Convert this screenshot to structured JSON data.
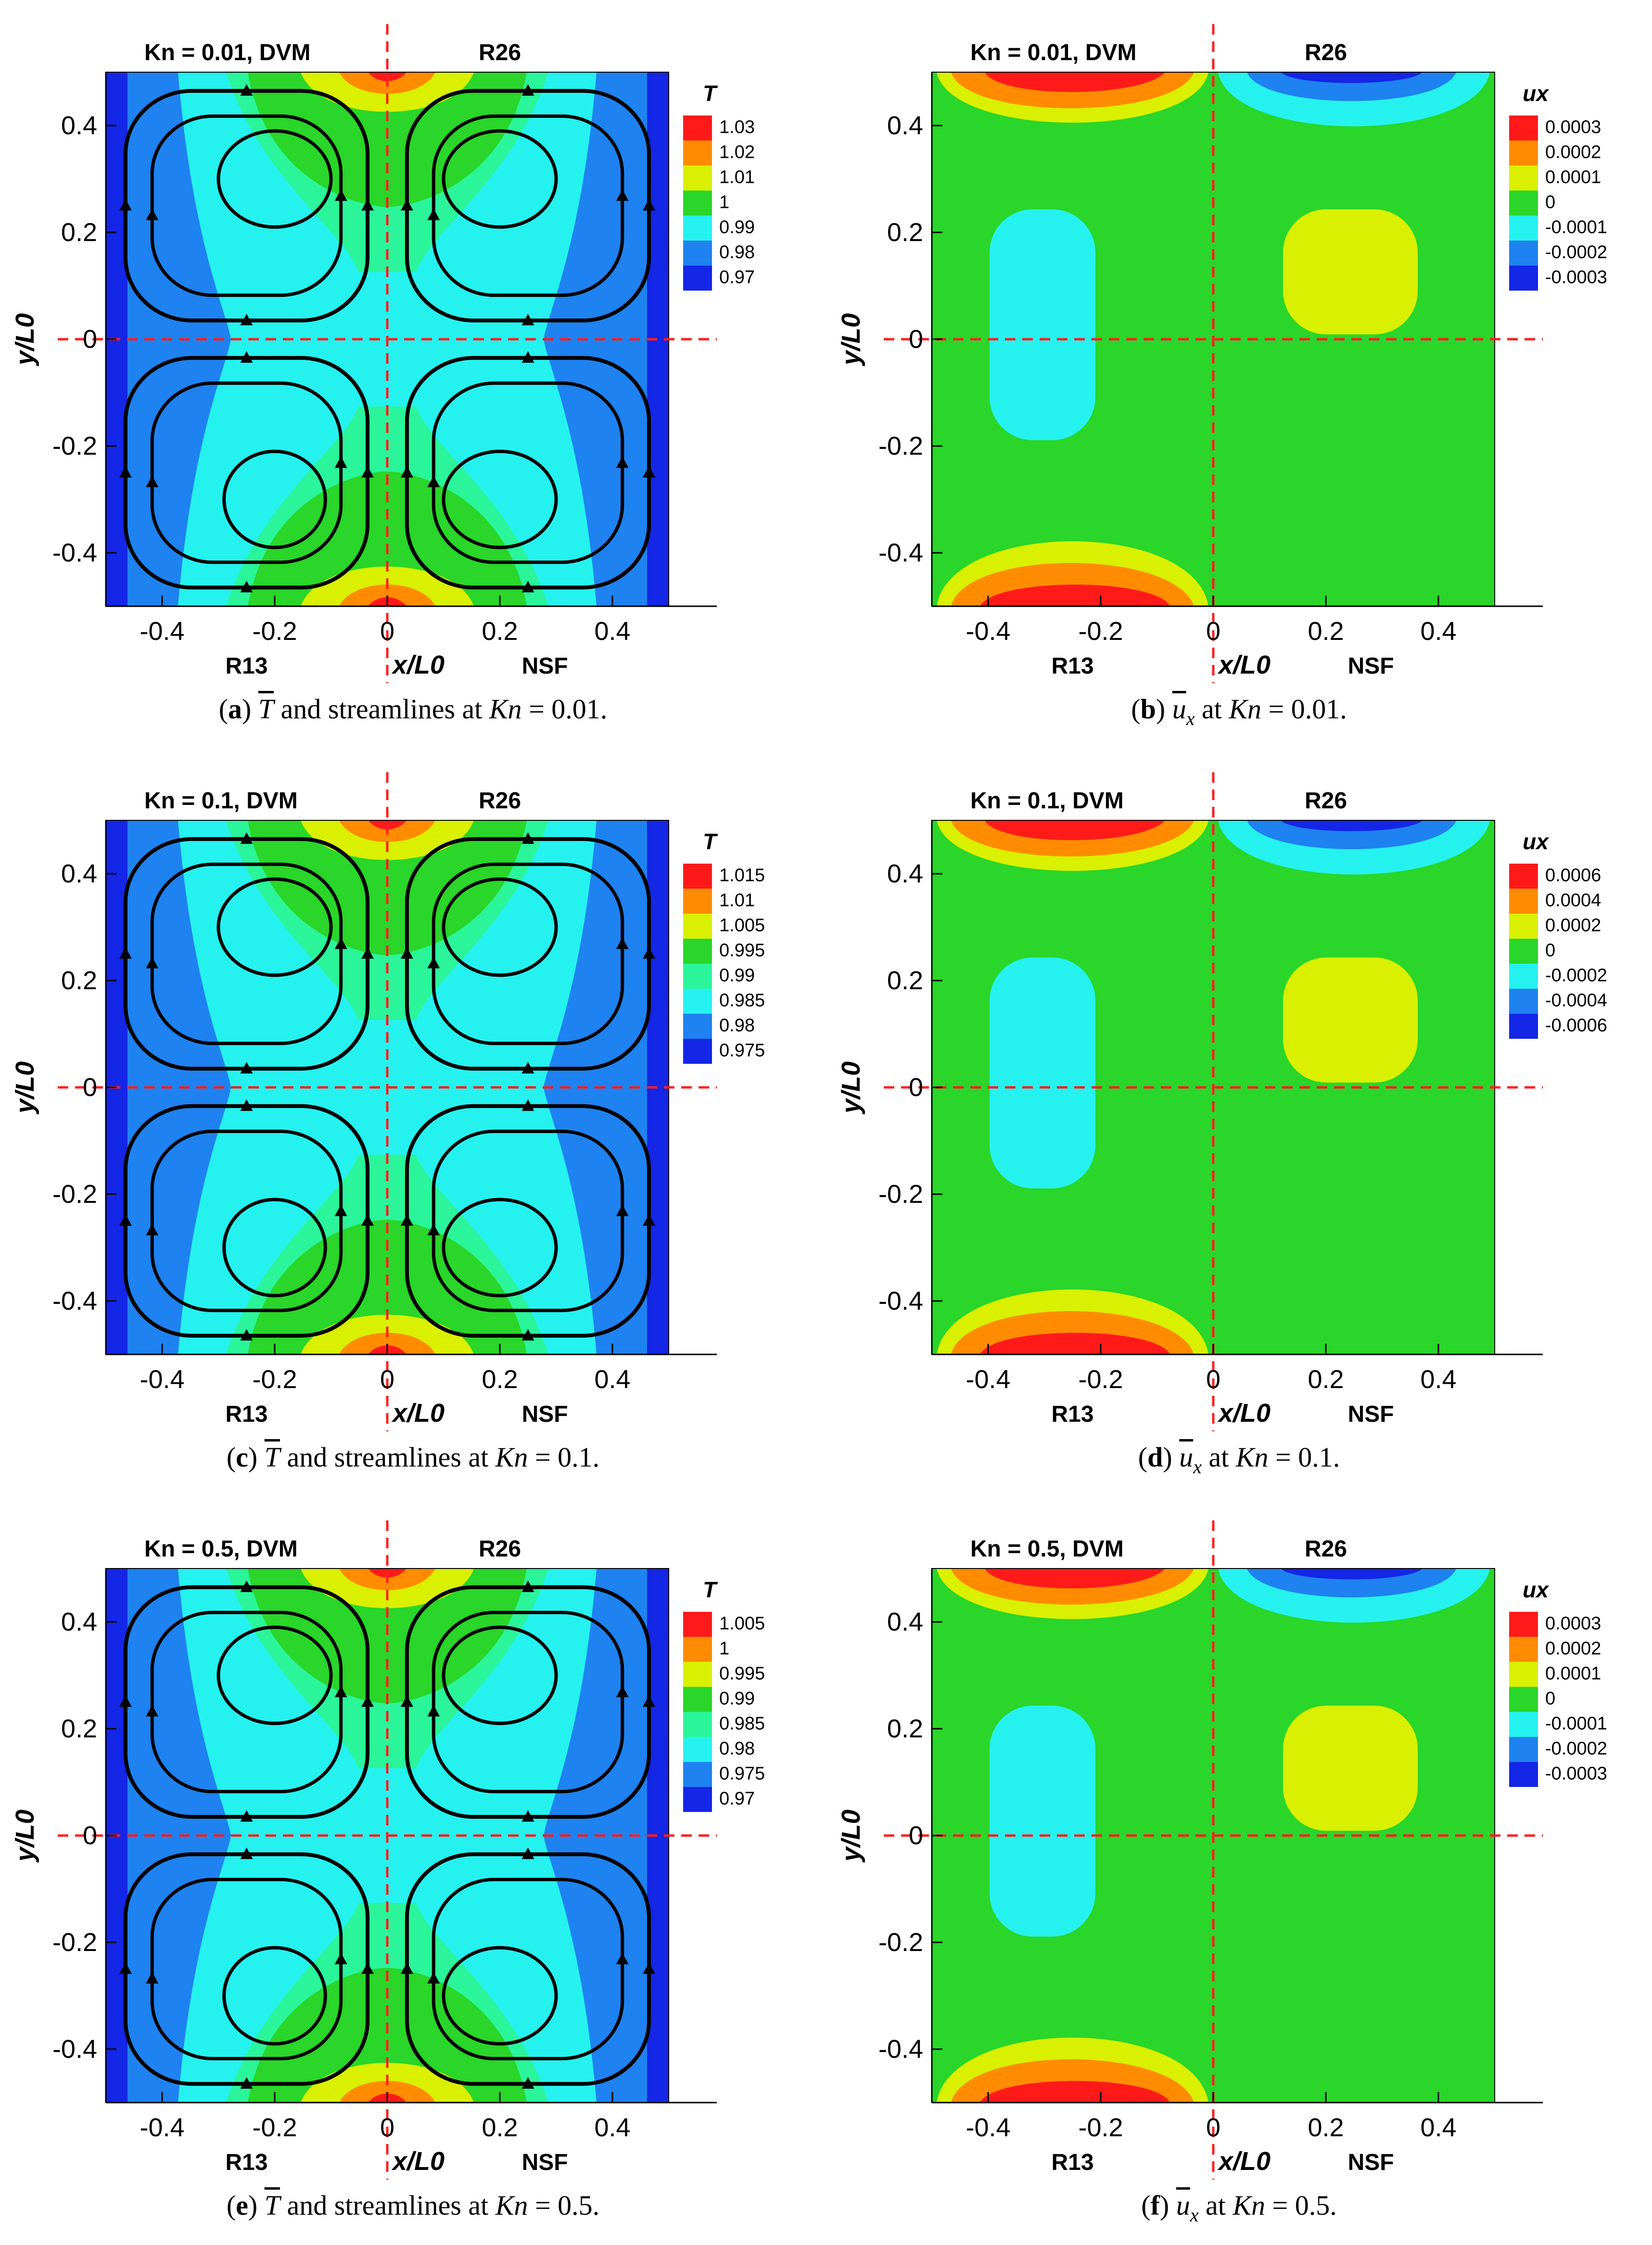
{
  "colors": {
    "red": "#ff1a1a",
    "orange": "#ff8c00",
    "yellow": "#d9f000",
    "green": "#29d629",
    "lightgreen": "#2af59a",
    "cyan": "#25f2ef",
    "midblue": "#1e82f0",
    "deepblue": "#1426e6",
    "divider": "#ff2020",
    "stream": "#000000"
  },
  "panels": [
    {
      "id": "a",
      "type": "temperature",
      "corner_title": "Kn = 0.01, DVM",
      "top_right_label": "R26",
      "bottom_left_label": "R13",
      "bottom_right_label": "NSF",
      "x_axis_title": "x/L0",
      "y_axis_title": "y/L0",
      "x_ticks": [
        "-0.4",
        "-0.2",
        "0",
        "0.2",
        "0.4"
      ],
      "y_ticks": [
        "0.4",
        "0.2",
        "0",
        "-0.2",
        "-0.4"
      ],
      "legend_title": "T",
      "legend_levels": [
        "1.03",
        "1.02",
        "1.01",
        "1",
        "0.99",
        "0.98",
        "0.97"
      ],
      "caption_letter": "a",
      "caption_var": "T",
      "caption_text": "and streamlines at",
      "caption_kn": "Kn",
      "caption_value": "= 0.01."
    },
    {
      "id": "b",
      "type": "velocity",
      "corner_title": "Kn = 0.01, DVM",
      "top_right_label": "R26",
      "bottom_left_label": "R13",
      "bottom_right_label": "NSF",
      "x_axis_title": "x/L0",
      "y_axis_title": "y/L0",
      "x_ticks": [
        "-0.4",
        "-0.2",
        "0",
        "0.2",
        "0.4"
      ],
      "y_ticks": [
        "0.4",
        "0.2",
        "0",
        "-0.2",
        "-0.4"
      ],
      "legend_title": "ux",
      "legend_levels": [
        "0.0003",
        "0.0002",
        "0.0001",
        "0",
        "-0.0001",
        "-0.0002",
        "-0.0003"
      ],
      "caption_letter": "b",
      "caption_var": "u",
      "caption_sub": "x",
      "caption_text": "at",
      "caption_kn": "Kn",
      "caption_value": "= 0.01."
    },
    {
      "id": "c",
      "type": "temperature",
      "corner_title": "Kn = 0.1, DVM",
      "top_right_label": "R26",
      "bottom_left_label": "R13",
      "bottom_right_label": "NSF",
      "x_axis_title": "x/L0",
      "y_axis_title": "y/L0",
      "x_ticks": [
        "-0.4",
        "-0.2",
        "0",
        "0.2",
        "0.4"
      ],
      "y_ticks": [
        "0.4",
        "0.2",
        "0",
        "-0.2",
        "-0.4"
      ],
      "legend_title": "T",
      "legend_levels": [
        "1.015",
        "1.01",
        "1.005",
        "0.995",
        "0.99",
        "0.985",
        "0.98",
        "0.975"
      ],
      "caption_letter": "c",
      "caption_var": "T",
      "caption_text": "and streamlines at",
      "caption_kn": "Kn",
      "caption_value": "= 0.1."
    },
    {
      "id": "d",
      "type": "velocity",
      "corner_title": "Kn = 0.1, DVM",
      "top_right_label": "R26",
      "bottom_left_label": "R13",
      "bottom_right_label": "NSF",
      "x_axis_title": "x/L0",
      "y_axis_title": "y/L0",
      "x_ticks": [
        "-0.4",
        "-0.2",
        "0",
        "0.2",
        "0.4"
      ],
      "y_ticks": [
        "0.4",
        "0.2",
        "0",
        "-0.2",
        "-0.4"
      ],
      "legend_title": "ux",
      "legend_levels": [
        "0.0006",
        "0.0004",
        "0.0002",
        "0",
        "-0.0002",
        "-0.0004",
        "-0.0006"
      ],
      "caption_letter": "d",
      "caption_var": "u",
      "caption_sub": "x",
      "caption_text": "at",
      "caption_kn": "Kn",
      "caption_value": "= 0.1."
    },
    {
      "id": "e",
      "type": "temperature",
      "corner_title": "Kn = 0.5, DVM",
      "top_right_label": "R26",
      "bottom_left_label": "R13",
      "bottom_right_label": "NSF",
      "x_axis_title": "x/L0",
      "y_axis_title": "y/L0",
      "x_ticks": [
        "-0.4",
        "-0.2",
        "0",
        "0.2",
        "0.4"
      ],
      "y_ticks": [
        "0.4",
        "0.2",
        "0",
        "-0.2",
        "-0.4"
      ],
      "legend_title": "T",
      "legend_levels": [
        "1.005",
        "1",
        "0.995",
        "0.99",
        "0.985",
        "0.98",
        "0.975",
        "0.97"
      ],
      "caption_letter": "e",
      "caption_var": "T",
      "caption_text": "and streamlines at",
      "caption_kn": "Kn",
      "caption_value": "= 0.5."
    },
    {
      "id": "f",
      "type": "velocity",
      "corner_title": "Kn = 0.5, DVM",
      "top_right_label": "R26",
      "bottom_left_label": "R13",
      "bottom_right_label": "NSF",
      "x_axis_title": "x/L0",
      "y_axis_title": "y/L0",
      "x_ticks": [
        "-0.4",
        "-0.2",
        "0",
        "0.2",
        "0.4"
      ],
      "y_ticks": [
        "0.4",
        "0.2",
        "0",
        "-0.2",
        "-0.4"
      ],
      "legend_title": "ux",
      "legend_levels": [
        "0.0003",
        "0.0002",
        "0.0001",
        "0",
        "-0.0001",
        "-0.0002",
        "-0.0003"
      ],
      "caption_letter": "f",
      "caption_var": "u",
      "caption_sub": "x",
      "caption_text": "at",
      "caption_kn": "Kn",
      "caption_value": "= 0.5."
    }
  ],
  "chart_data": [
    {
      "type": "heatmap",
      "title": "T and streamlines at Kn = 0.01",
      "xlabel": "x/L0",
      "ylabel": "y/L0",
      "xlim": [
        -0.5,
        0.5
      ],
      "ylim": [
        -0.5,
        0.5
      ],
      "quadrants": [
        "DVM",
        "R26",
        "R13",
        "NSF"
      ],
      "legend_levels": [
        1.03,
        1.02,
        1.01,
        1,
        0.99,
        0.98,
        0.97
      ]
    },
    {
      "type": "heatmap",
      "title": "ux at Kn = 0.01",
      "xlabel": "x/L0",
      "ylabel": "y/L0",
      "xlim": [
        -0.5,
        0.5
      ],
      "ylim": [
        -0.5,
        0.5
      ],
      "quadrants": [
        "DVM",
        "R26",
        "R13",
        "NSF"
      ],
      "legend_levels": [
        0.0003,
        0.0002,
        0.0001,
        0,
        -0.0001,
        -0.0002,
        -0.0003
      ]
    },
    {
      "type": "heatmap",
      "title": "T and streamlines at Kn = 0.1",
      "xlabel": "x/L0",
      "ylabel": "y/L0",
      "xlim": [
        -0.5,
        0.5
      ],
      "ylim": [
        -0.5,
        0.5
      ],
      "quadrants": [
        "DVM",
        "R26",
        "R13",
        "NSF"
      ],
      "legend_levels": [
        1.015,
        1.01,
        1.005,
        0.995,
        0.99,
        0.985,
        0.98,
        0.975
      ]
    },
    {
      "type": "heatmap",
      "title": "ux at Kn = 0.1",
      "xlabel": "x/L0",
      "ylabel": "y/L0",
      "xlim": [
        -0.5,
        0.5
      ],
      "ylim": [
        -0.5,
        0.5
      ],
      "quadrants": [
        "DVM",
        "R26",
        "R13",
        "NSF"
      ],
      "legend_levels": [
        0.0006,
        0.0004,
        0.0002,
        0,
        -0.0002,
        -0.0004,
        -0.0006
      ]
    },
    {
      "type": "heatmap",
      "title": "T and streamlines at Kn = 0.5",
      "xlabel": "x/L0",
      "ylabel": "y/L0",
      "xlim": [
        -0.5,
        0.5
      ],
      "ylim": [
        -0.5,
        0.5
      ],
      "quadrants": [
        "DVM",
        "R26",
        "R13",
        "NSF"
      ],
      "legend_levels": [
        1.005,
        1,
        0.995,
        0.99,
        0.985,
        0.98,
        0.975,
        0.97
      ]
    },
    {
      "type": "heatmap",
      "title": "ux at Kn = 0.5",
      "xlabel": "x/L0",
      "ylabel": "y/L0",
      "xlim": [
        -0.5,
        0.5
      ],
      "ylim": [
        -0.5,
        0.5
      ],
      "quadrants": [
        "DVM",
        "R26",
        "R13",
        "NSF"
      ],
      "legend_levels": [
        0.0003,
        0.0002,
        0.0001,
        0,
        -0.0001,
        -0.0002,
        -0.0003
      ]
    }
  ]
}
